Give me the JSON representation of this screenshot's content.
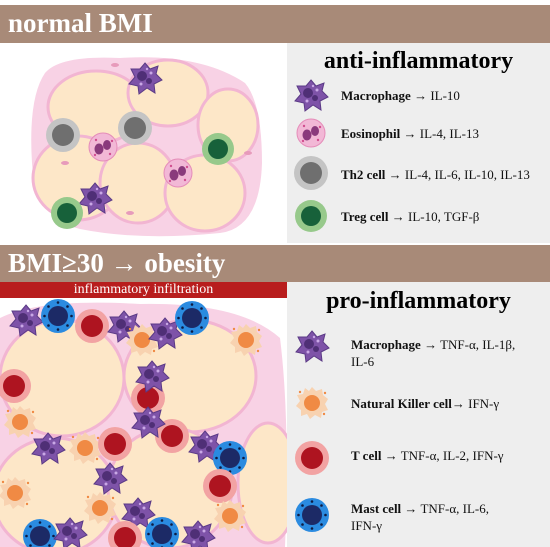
{
  "top": {
    "title": "normal BMI",
    "heading": "anti-inflammatory",
    "items": [
      {
        "cell": "Macrophage",
        "arrow": "→",
        "cytokines": "IL-10",
        "icon": "macrophage-icon"
      },
      {
        "cell": "Eosinophil",
        "arrow": "→",
        "cytokines": "IL-4, IL-13",
        "icon": "eosinophil-icon"
      },
      {
        "cell": "Th2 cell",
        "arrow": "→",
        "cytokines": "IL-4, IL-6, IL-10, IL-13",
        "icon": "th2-cell-icon"
      },
      {
        "cell": "Treg cell",
        "arrow": "→",
        "cytokines": "IL-10, TGF-β",
        "icon": "treg-cell-icon"
      }
    ]
  },
  "bottom": {
    "title": "BMI≥30 → obesity",
    "infiltration_label": "inflammatory infiltration",
    "heading": "pro-inflammatory",
    "items": [
      {
        "cell": "Macrophage",
        "arrow": "→",
        "cytokines": "TNF-α, IL-1β,",
        "cytokines2": "IL-6",
        "icon": "macrophage-icon"
      },
      {
        "cell": "Natural Killer cell",
        "arrow": "→",
        "cytokines": "IFN-γ",
        "icon": "nk-cell-icon"
      },
      {
        "cell": "T cell",
        "arrow": "→",
        "cytokines": "TNF-α, IL-2, IFN-γ",
        "icon": "t-cell-icon"
      },
      {
        "cell": "Mast cell",
        "arrow": "→",
        "cytokines": "TNF-α, IL-6,",
        "cytokines2": "IFN-γ",
        "icon": "mast-cell-icon"
      }
    ]
  },
  "colors": {
    "band": "#a88a78",
    "adipocyte": "#fde7c8",
    "membrane": "#f4c4dc",
    "macrophage": "#7b4fa6",
    "eosinophil": "#eea5c9",
    "th2": "#8a8a8a",
    "treg": "#1e6b3c",
    "nk": "#f39a5a",
    "tcell": "#b0161d",
    "mast": "#2a86d9",
    "infiltration_bar": "#b81d1d"
  }
}
